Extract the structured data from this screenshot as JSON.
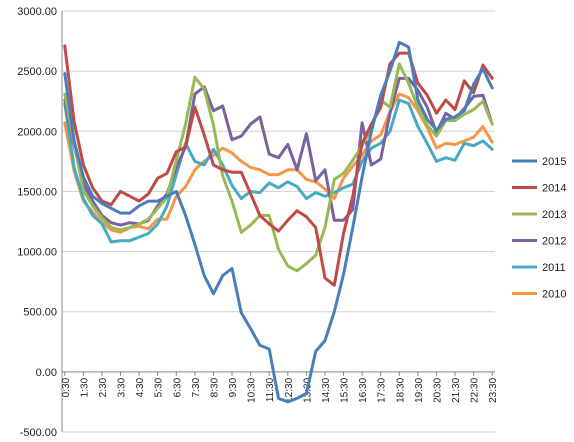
{
  "chart_data": {
    "type": "line",
    "title": "",
    "xlabel": "",
    "ylabel": "",
    "ylim": [
      -500,
      3000
    ],
    "y_ticks": [
      "-500.00",
      "0.00",
      "500.00",
      "1000.00",
      "1500.00",
      "2000.00",
      "2500.00",
      "3000.00"
    ],
    "y_tick_values": [
      -500,
      0,
      500,
      1000,
      1500,
      2000,
      2500,
      3000
    ],
    "x_tick_labels": [
      "0:30",
      "1:30",
      "2:30",
      "3:30",
      "4:30",
      "5:30",
      "6:30",
      "7:30",
      "8:30",
      "9:30",
      "10:30",
      "11:30",
      "12:30",
      "13:30",
      "14:30",
      "15:30",
      "16:30",
      "17:30",
      "18:30",
      "19:30",
      "20:30",
      "21:30",
      "22:30",
      "23:30"
    ],
    "grid": true,
    "legend_position": "right",
    "x": [
      "0:30",
      "1:00",
      "1:30",
      "2:00",
      "2:30",
      "3:00",
      "3:30",
      "4:00",
      "4:30",
      "5:00",
      "5:30",
      "6:00",
      "6:30",
      "7:00",
      "7:30",
      "8:00",
      "8:30",
      "9:00",
      "9:30",
      "10:00",
      "10:30",
      "11:00",
      "11:30",
      "12:00",
      "12:30",
      "13:00",
      "13:30",
      "14:00",
      "14:30",
      "15:00",
      "15:30",
      "16:00",
      "16:30",
      "17:00",
      "17:30",
      "18:00",
      "18:30",
      "19:00",
      "19:30",
      "20:00",
      "20:30",
      "21:00",
      "21:30",
      "22:00",
      "22:30",
      "23:00",
      "23:30"
    ],
    "series": [
      {
        "name": "2015",
        "color": "#4a7ebb",
        "values": [
          2480,
          1920,
          1620,
          1460,
          1400,
          1360,
          1320,
          1320,
          1380,
          1420,
          1420,
          1460,
          1500,
          1300,
          1060,
          800,
          650,
          800,
          860,
          490,
          360,
          220,
          190,
          -220,
          -250,
          -220,
          -180,
          170,
          260,
          500,
          810,
          1200,
          1620,
          2000,
          2300,
          2500,
          2740,
          2700,
          2260,
          2100,
          2010,
          2100,
          2120,
          2170,
          2390,
          2520,
          2360
        ]
      },
      {
        "name": "2014",
        "color": "#be4b48",
        "values": [
          2710,
          2080,
          1720,
          1530,
          1420,
          1390,
          1500,
          1460,
          1420,
          1480,
          1610,
          1650,
          1830,
          1870,
          2200,
          1970,
          1720,
          1680,
          1660,
          1660,
          1480,
          1300,
          1230,
          1170,
          1260,
          1340,
          1290,
          1200,
          780,
          720,
          1150,
          1460,
          1900,
          2060,
          2200,
          2560,
          2650,
          2650,
          2400,
          2300,
          2150,
          2260,
          2180,
          2420,
          2320,
          2550,
          2440
        ]
      },
      {
        "name": "2013",
        "color": "#98b954",
        "values": [
          2310,
          1900,
          1510,
          1380,
          1280,
          1200,
          1180,
          1200,
          1230,
          1270,
          1360,
          1450,
          1760,
          2060,
          2450,
          2350,
          2050,
          1630,
          1420,
          1160,
          1220,
          1300,
          1300,
          1020,
          880,
          840,
          900,
          970,
          1200,
          1600,
          1650,
          1760,
          1880,
          2020,
          2260,
          2200,
          2560,
          2400,
          2200,
          2050,
          1960,
          2090,
          2090,
          2140,
          2180,
          2250,
          2060
        ]
      },
      {
        "name": "2012",
        "color": "#7d60a0",
        "values": [
          2260,
          1880,
          1560,
          1420,
          1300,
          1240,
          1220,
          1240,
          1230,
          1260,
          1380,
          1480,
          1700,
          1870,
          2310,
          2370,
          2170,
          2210,
          1930,
          1960,
          2060,
          2120,
          1810,
          1780,
          1890,
          1680,
          1980,
          1590,
          1680,
          1260,
          1260,
          1350,
          2070,
          1720,
          1770,
          2150,
          2440,
          2440,
          2340,
          2200,
          1990,
          2150,
          2100,
          2190,
          2290,
          2300,
          2060
        ]
      },
      {
        "name": "2011",
        "color": "#46aac5",
        "values": [
          2230,
          1700,
          1440,
          1300,
          1230,
          1080,
          1090,
          1090,
          1120,
          1150,
          1230,
          1380,
          1640,
          1900,
          1750,
          1720,
          1850,
          1720,
          1550,
          1440,
          1500,
          1490,
          1570,
          1530,
          1580,
          1540,
          1440,
          1490,
          1460,
          1490,
          1530,
          1560,
          1750,
          1860,
          1900,
          2000,
          2260,
          2230,
          2040,
          1900,
          1750,
          1780,
          1760,
          1900,
          1880,
          1920,
          1850
        ]
      },
      {
        "name": "2010",
        "color": "#f79646",
        "values": [
          2070,
          1670,
          1420,
          1330,
          1240,
          1180,
          1160,
          1200,
          1210,
          1190,
          1270,
          1270,
          1460,
          1540,
          1680,
          1750,
          1800,
          1860,
          1820,
          1750,
          1700,
          1680,
          1640,
          1640,
          1680,
          1680,
          1600,
          1580,
          1520,
          1440,
          1610,
          1710,
          1800,
          1920,
          1970,
          2160,
          2310,
          2280,
          2170,
          2030,
          1860,
          1900,
          1890,
          1920,
          1950,
          2040,
          1910
        ]
      }
    ]
  }
}
